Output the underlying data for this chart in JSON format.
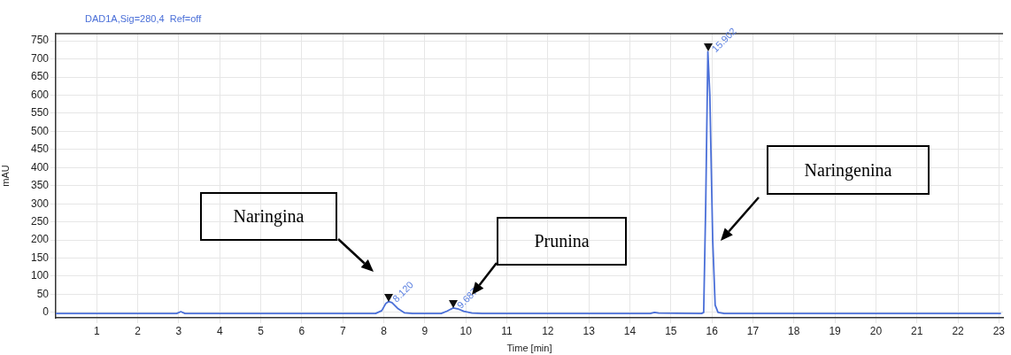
{
  "chart_data": {
    "type": "line",
    "title": "DAD1A,Sig=280,4  Ref=off",
    "xlabel": "Time [min]",
    "ylabel": "mAU",
    "xlim": [
      0,
      23.1
    ],
    "xticks": [
      1,
      2,
      3,
      4,
      5,
      6,
      7,
      8,
      9,
      10,
      11,
      12,
      13,
      14,
      15,
      16,
      17,
      18,
      19,
      20,
      21,
      22,
      23
    ],
    "ylim": [
      -15,
      770
    ],
    "yticks": [
      0,
      50,
      100,
      150,
      200,
      250,
      300,
      350,
      400,
      450,
      500,
      550,
      600,
      650,
      700,
      750
    ],
    "grid": true,
    "legend": false,
    "marker": "none",
    "line_style": "solid",
    "series": [
      {
        "color": "#4a6fd8",
        "x": [
          0,
          2.95,
          3.05,
          3.15,
          7.8,
          7.95,
          8.05,
          8.12,
          8.2,
          8.35,
          8.5,
          8.7,
          9.4,
          9.55,
          9.687,
          9.8,
          9.95,
          10.15,
          10.4,
          14.5,
          14.6,
          14.7,
          15.75,
          15.8,
          15.85,
          15.902,
          15.95,
          16.02,
          16.08,
          16.15,
          16.3,
          23.05
        ],
        "values": [
          -3,
          -3,
          2,
          -3,
          -3,
          5,
          25,
          30,
          27,
          10,
          -1,
          -3,
          -3,
          4,
          12,
          10,
          3,
          -2,
          -3,
          -3,
          0,
          -2,
          -3,
          0,
          300,
          720,
          600,
          200,
          20,
          0,
          -3,
          -3
        ]
      }
    ],
    "annotations": [
      {
        "text": "8.120",
        "x": 8.12,
        "y": 30
      },
      {
        "text": "9.687",
        "x": 9.687,
        "y": 12
      },
      {
        "text": "15.902",
        "x": 15.902,
        "y": 720
      },
      "Naringina",
      "Prunina",
      "Naringenina"
    ]
  }
}
